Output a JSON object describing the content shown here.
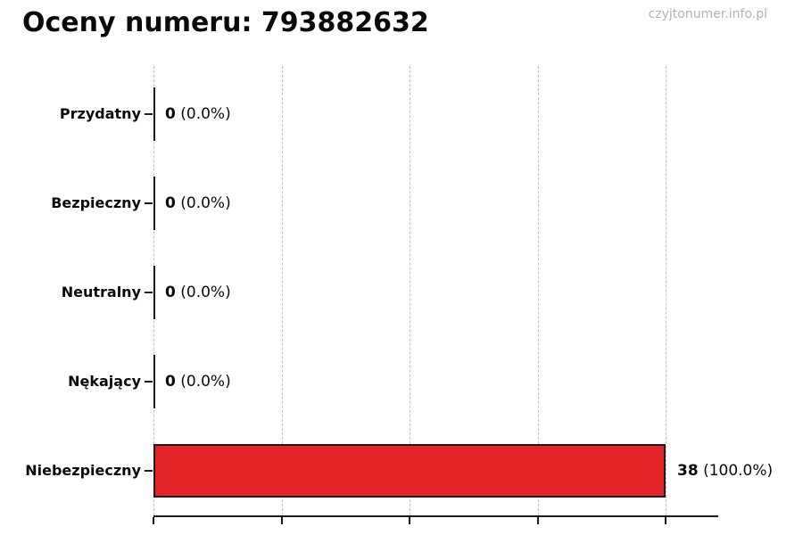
{
  "page": {
    "title": "Oceny numeru: 793882632",
    "watermark": "czyjtonumer.info.pl"
  },
  "chart_data": {
    "type": "bar",
    "orientation": "horizontal",
    "title": "Oceny numeru: 793882632",
    "categories": [
      "Przydatny",
      "Bezpieczny",
      "Neutralny",
      "Nękający",
      "Niebezpieczny"
    ],
    "values": [
      0,
      0,
      0,
      0,
      38
    ],
    "percentages": [
      0.0,
      0.0,
      0.0,
      0.0,
      100.0
    ],
    "value_counts": [
      "0",
      "0",
      "0",
      "0",
      "38"
    ],
    "value_pcts": [
      "(0.0%)",
      "(0.0%)",
      "(0.0%)",
      "(0.0%)",
      "(100.0%)"
    ],
    "x_ticks": [
      0,
      9.5,
      19,
      28.5,
      38
    ],
    "xlim": [
      0,
      41.9
    ],
    "grid": "vertical-dashed",
    "legend": "none",
    "bar_color": "#e32426",
    "bar_border_color": "#1a1a1a",
    "axis_color": "#1a1a1a",
    "grid_color": "#c4c4c4",
    "watermark_color": "#b3b3b3"
  }
}
